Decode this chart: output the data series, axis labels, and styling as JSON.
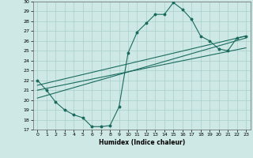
{
  "xlabel": "Humidex (Indice chaleur)",
  "xlim": [
    -0.5,
    23.5
  ],
  "ylim": [
    17,
    30
  ],
  "xticks": [
    0,
    1,
    2,
    3,
    4,
    5,
    6,
    7,
    8,
    9,
    10,
    11,
    12,
    13,
    14,
    15,
    16,
    17,
    18,
    19,
    20,
    21,
    22,
    23
  ],
  "yticks": [
    17,
    18,
    19,
    20,
    21,
    22,
    23,
    24,
    25,
    26,
    27,
    28,
    29,
    30
  ],
  "bg_color": "#cde8e5",
  "line_color": "#1a6b5e",
  "grid_color": "#aacfcc",
  "curve_x": [
    0,
    1,
    2,
    3,
    4,
    5,
    6,
    7,
    8,
    9,
    10,
    11,
    12,
    13,
    14,
    15,
    16,
    17,
    18,
    19,
    20,
    21,
    22,
    23
  ],
  "curve_y": [
    22,
    21,
    19.8,
    19,
    18.5,
    18.2,
    17.3,
    17.3,
    17.4,
    19.3,
    24.8,
    26.9,
    27.8,
    28.7,
    28.7,
    29.9,
    29.2,
    28.2,
    26.5,
    26.0,
    25.2,
    25.0,
    26.3,
    26.5
  ],
  "line1_x": [
    0,
    23
  ],
  "line1_y": [
    21.5,
    26.5
  ],
  "line2_x": [
    0,
    23
  ],
  "line2_y": [
    21.0,
    25.3
  ],
  "line3_x": [
    0,
    23
  ],
  "line3_y": [
    20.2,
    26.3
  ]
}
